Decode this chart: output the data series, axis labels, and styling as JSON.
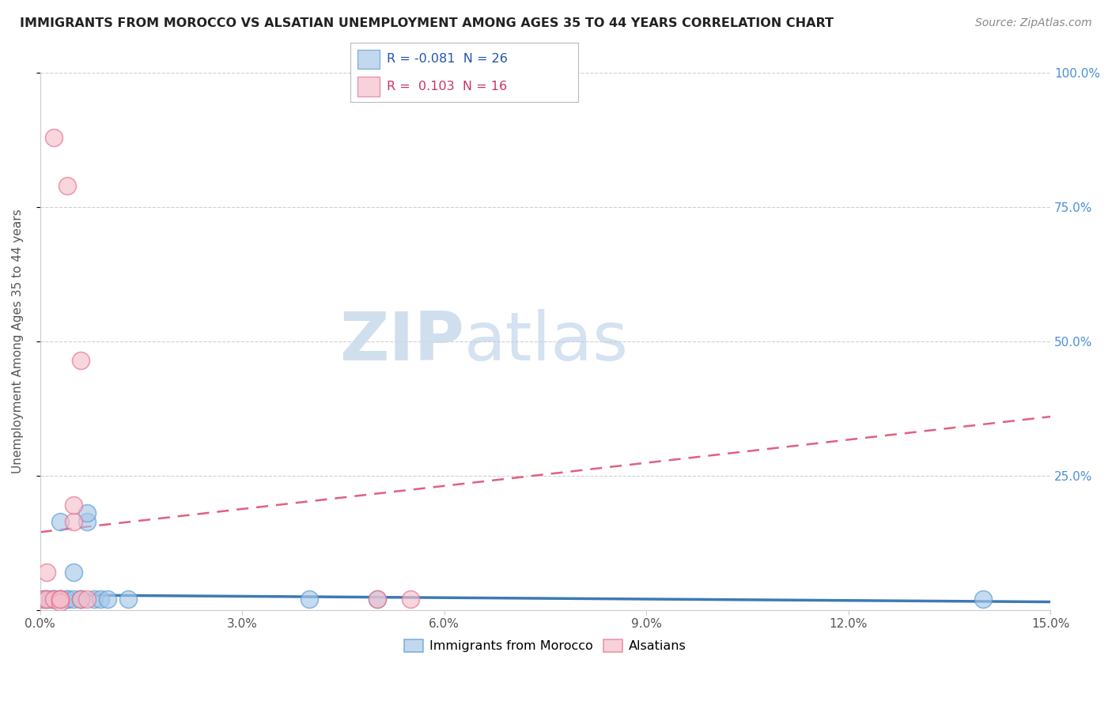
{
  "title": "IMMIGRANTS FROM MOROCCO VS ALSATIAN UNEMPLOYMENT AMONG AGES 35 TO 44 YEARS CORRELATION CHART",
  "source": "Source: ZipAtlas.com",
  "ylabel": "Unemployment Among Ages 35 to 44 years",
  "xlim": [
    0.0,
    0.15
  ],
  "ylim": [
    0.0,
    1.0
  ],
  "xticks": [
    0.0,
    0.03,
    0.06,
    0.09,
    0.12,
    0.15
  ],
  "xtick_labels": [
    "0.0%",
    "3.0%",
    "6.0%",
    "9.0%",
    "12.0%",
    "15.0%"
  ],
  "yticks": [
    0.0,
    0.25,
    0.5,
    0.75,
    1.0
  ],
  "ytick_labels_right": [
    "",
    "25.0%",
    "50.0%",
    "75.0%",
    "100.0%"
  ],
  "legend1_r": "-0.081",
  "legend1_n": "26",
  "legend2_r": "0.103",
  "legend2_n": "16",
  "blue_color": "#a8c8e8",
  "blue_edge_color": "#5b9bd5",
  "pink_color": "#f5c0cc",
  "pink_edge_color": "#e87090",
  "blue_line_color": "#3d7ab5",
  "pink_line_color": "#e06080",
  "blue_scatter_x": [
    0.0005,
    0.001,
    0.001,
    0.0015,
    0.002,
    0.002,
    0.002,
    0.003,
    0.003,
    0.003,
    0.003,
    0.004,
    0.004,
    0.005,
    0.005,
    0.006,
    0.006,
    0.007,
    0.007,
    0.008,
    0.009,
    0.01,
    0.013,
    0.04,
    0.05,
    0.14
  ],
  "blue_scatter_y": [
    0.02,
    0.02,
    0.02,
    0.02,
    0.02,
    0.02,
    0.02,
    0.02,
    0.02,
    0.02,
    0.165,
    0.02,
    0.02,
    0.02,
    0.07,
    0.02,
    0.02,
    0.165,
    0.18,
    0.02,
    0.02,
    0.02,
    0.02,
    0.02,
    0.02,
    0.02
  ],
  "pink_scatter_x": [
    0.0005,
    0.001,
    0.001,
    0.002,
    0.002,
    0.003,
    0.003,
    0.003,
    0.004,
    0.005,
    0.005,
    0.006,
    0.006,
    0.007,
    0.05,
    0.055
  ],
  "pink_scatter_y": [
    0.02,
    0.02,
    0.07,
    0.02,
    0.88,
    0.02,
    0.015,
    0.02,
    0.79,
    0.165,
    0.195,
    0.465,
    0.02,
    0.02,
    0.02,
    0.02
  ],
  "blue_trend_x": [
    0.0,
    0.15
  ],
  "blue_trend_y": [
    0.028,
    0.015
  ],
  "pink_trend_x": [
    0.0,
    0.15
  ],
  "pink_trend_y": [
    0.145,
    0.36
  ],
  "watermark_zip": "ZIP",
  "watermark_atlas": "atlas",
  "background_color": "#ffffff",
  "grid_color": "#d0d0d0"
}
